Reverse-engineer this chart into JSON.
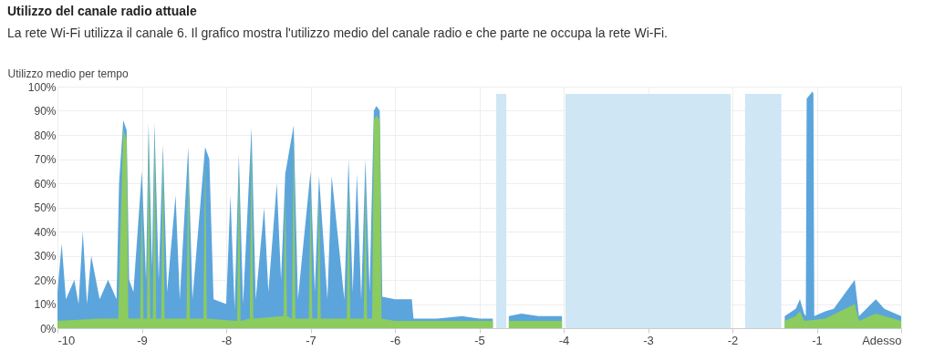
{
  "chart_data": {
    "type": "area",
    "title": "Utilizzo del canale radio attuale",
    "subtitle": "La rete Wi-Fi utilizza il canale 6. Il grafico mostra l'utilizzo medio del canale radio e che parte ne occupa la rete Wi-Fi.",
    "ylabel": "Utilizzo medio per tempo",
    "series": [
      {
        "color": "#cfe6f5",
        "x": [
          -4.8,
          -4.75,
          -4.7,
          -4.68
        ],
        "values": [
          97,
          97,
          97,
          97
        ]
      },
      {
        "color": "#cfe6f5",
        "x": [
          -3.98,
          -3.5,
          -3.0,
          -2.5,
          -2.02
        ],
        "values": [
          97,
          97,
          97,
          97,
          97
        ]
      },
      {
        "color": "#cfe6f5",
        "x": [
          -1.85,
          -1.6,
          -1.42
        ],
        "values": [
          97,
          97,
          97
        ]
      },
      {
        "color": "#5ba5dc",
        "x": [
          -10,
          -9.95,
          -9.9,
          -9.8,
          -9.75,
          -9.7,
          -9.65,
          -9.6,
          -9.5,
          -9.4,
          -9.3,
          -9.27,
          -9.22,
          -9.18,
          -9.15,
          -9.1,
          -9.05,
          -9.0,
          -8.95,
          -8.92,
          -8.88,
          -8.85,
          -8.8,
          -8.75,
          -8.7,
          -8.6,
          -8.55,
          -8.45,
          -8.4,
          -8.25,
          -8.2,
          -8.15,
          -8.0,
          -7.95,
          -7.9,
          -7.85,
          -7.8,
          -7.7,
          -7.65,
          -7.55,
          -7.5,
          -7.4,
          -7.35,
          -7.3,
          -7.2,
          -7.15,
          -7.0,
          -6.95,
          -6.9,
          -6.8,
          -6.75,
          -6.6,
          -6.55,
          -6.5,
          -6.45,
          -6.4,
          -6.35,
          -6.3,
          -6.25,
          -6.22,
          -6.18,
          -6.15,
          -6.0,
          -5.8,
          -5.78,
          -5.5,
          -5.2,
          -5.0,
          -4.84,
          -4.82,
          -4.66,
          -4.65,
          -4.5,
          -4.3,
          -4.02,
          -4.0,
          -1.4,
          -1.38,
          -1.25,
          -1.2,
          -1.15,
          -1.13,
          -1.12,
          -1.05,
          -1.04,
          -1.03,
          -0.9,
          -0.8,
          -0.55,
          -0.5,
          -0.3,
          -0.2,
          0
        ],
        "values": [
          15,
          35,
          12,
          20,
          10,
          40,
          10,
          30,
          12,
          20,
          12,
          60,
          86,
          82,
          20,
          15,
          40,
          65,
          20,
          85,
          25,
          85,
          20,
          76,
          15,
          55,
          12,
          75,
          12,
          75,
          70,
          12,
          10,
          55,
          8,
          72,
          10,
          83,
          12,
          50,
          15,
          60,
          20,
          64,
          84,
          12,
          65,
          15,
          63,
          12,
          63,
          12,
          70,
          15,
          64,
          12,
          70,
          15,
          90,
          92,
          90,
          13,
          12,
          12,
          4,
          4,
          5,
          4,
          4,
          null,
          null,
          5,
          6,
          5,
          5,
          null,
          null,
          5,
          8,
          12,
          6,
          5,
          95,
          98,
          97,
          5,
          7,
          8,
          20,
          5,
          12,
          8,
          5
        ]
      },
      {
        "color": "#8ccb5e",
        "x": [
          -10,
          -9.5,
          -9.3,
          -9.28,
          -9.22,
          -9.18,
          -9.16,
          -9.02,
          -9.0,
          -8.98,
          -8.94,
          -8.92,
          -8.9,
          -8.87,
          -8.85,
          -8.83,
          -8.77,
          -8.75,
          -8.73,
          -8.47,
          -8.45,
          -8.43,
          -8.27,
          -8.25,
          -8.23,
          -7.87,
          -7.85,
          -7.83,
          -7.72,
          -7.7,
          -7.68,
          -7.32,
          -7.3,
          -7.28,
          -7.22,
          -7.2,
          -7.18,
          -7.02,
          -7.0,
          -6.98,
          -6.92,
          -6.9,
          -6.88,
          -6.57,
          -6.55,
          -6.53,
          -6.37,
          -6.35,
          -6.33,
          -6.27,
          -6.25,
          -6.22,
          -6.18,
          -6.16,
          -6.0,
          -5.0,
          -4.84,
          -4.82,
          -4.65,
          -4.02,
          -4.0,
          -1.38,
          -1.25,
          -1.2,
          -1.15,
          -0.9,
          -0.55,
          -0.5,
          -0.3,
          0
        ],
        "values": [
          3,
          4,
          4,
          4,
          82,
          78,
          4,
          4,
          55,
          4,
          4,
          81,
          4,
          4,
          81,
          4,
          4,
          72,
          4,
          4,
          71,
          4,
          4,
          71,
          4,
          3,
          68,
          3,
          4,
          79,
          4,
          5,
          58,
          5,
          4,
          80,
          4,
          4,
          58,
          4,
          4,
          56,
          4,
          4,
          62,
          4,
          4,
          62,
          4,
          4,
          86,
          88,
          86,
          4,
          3,
          3,
          3,
          null,
          3,
          3,
          null,
          3,
          5,
          7,
          3,
          4,
          10,
          3,
          6,
          3
        ]
      }
    ],
    "xlim": [
      -10,
      0
    ],
    "xticks": [
      -10,
      -9,
      -8,
      -7,
      -6,
      -5,
      -4,
      -3,
      -2,
      -1,
      {
        "value": 0,
        "label": "Adesso"
      }
    ],
    "ylim": [
      0,
      100
    ],
    "yticks": [
      {
        "value": 0,
        "label": "0%"
      },
      {
        "value": 10,
        "label": "10%"
      },
      {
        "value": 20,
        "label": "20%"
      },
      {
        "value": 30,
        "label": "30%"
      },
      {
        "value": 40,
        "label": "40%"
      },
      {
        "value": 50,
        "label": "50%"
      },
      {
        "value": 60,
        "label": "60%"
      },
      {
        "value": 70,
        "label": "70%"
      },
      {
        "value": 80,
        "label": "80%"
      },
      {
        "value": 90,
        "label": "90%"
      },
      {
        "value": 100,
        "label": "100%"
      }
    ],
    "grid": true,
    "legend": false
  }
}
